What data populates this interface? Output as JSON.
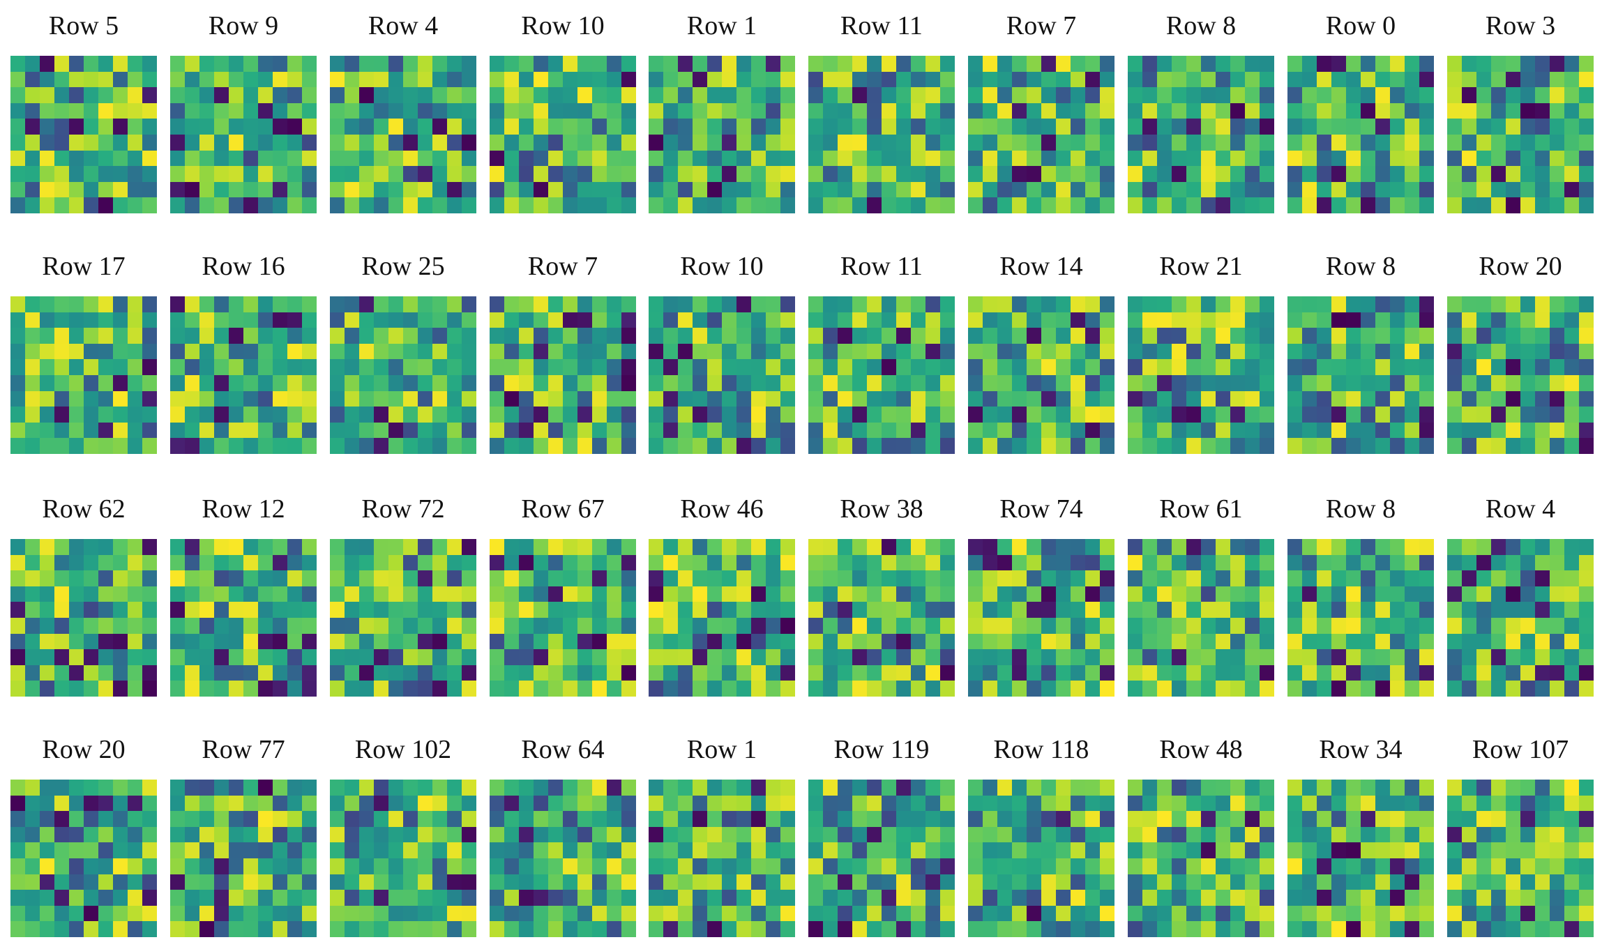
{
  "chart_data": {
    "type": "heatmap",
    "grid": {
      "rows": 4,
      "cols": 10,
      "cells_per_side": 10
    },
    "colormap": "viridis",
    "colors": {
      "low": "#440154",
      "mid": "#21918c",
      "high": "#fde725"
    },
    "panels": [
      {
        "label": "Row 5"
      },
      {
        "label": "Row 9"
      },
      {
        "label": "Row 4"
      },
      {
        "label": "Row 10"
      },
      {
        "label": "Row 1"
      },
      {
        "label": "Row 11"
      },
      {
        "label": "Row 7"
      },
      {
        "label": "Row 8"
      },
      {
        "label": "Row 0"
      },
      {
        "label": "Row 3"
      },
      {
        "label": "Row 17"
      },
      {
        "label": "Row 16"
      },
      {
        "label": "Row 25"
      },
      {
        "label": "Row 7"
      },
      {
        "label": "Row 10"
      },
      {
        "label": "Row 11"
      },
      {
        "label": "Row 14"
      },
      {
        "label": "Row 21"
      },
      {
        "label": "Row 8"
      },
      {
        "label": "Row 20"
      },
      {
        "label": "Row 62"
      },
      {
        "label": "Row 12"
      },
      {
        "label": "Row 72"
      },
      {
        "label": "Row 67"
      },
      {
        "label": "Row 46"
      },
      {
        "label": "Row 38"
      },
      {
        "label": "Row 74"
      },
      {
        "label": "Row 61"
      },
      {
        "label": "Row 8"
      },
      {
        "label": "Row 4"
      },
      {
        "label": "Row 20"
      },
      {
        "label": "Row 77"
      },
      {
        "label": "Row 102"
      },
      {
        "label": "Row 64"
      },
      {
        "label": "Row 1"
      },
      {
        "label": "Row 119"
      },
      {
        "label": "Row 118"
      },
      {
        "label": "Row 48"
      },
      {
        "label": "Row 34"
      },
      {
        "label": "Row 107"
      }
    ]
  }
}
